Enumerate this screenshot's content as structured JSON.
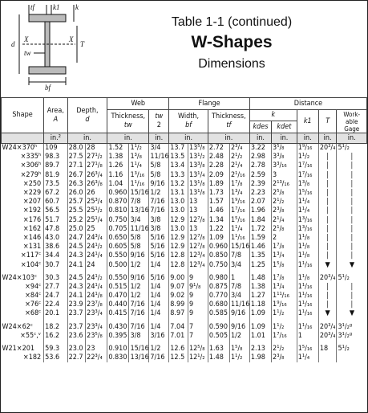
{
  "header": {
    "title_line1": "Table 1-1 (continued)",
    "title_line2": "W-Shapes",
    "title_line3": "Dimensions"
  },
  "diagram": {
    "labels": {
      "tf": "tf",
      "k1": "k1",
      "k": "k",
      "d": "d",
      "x_left": "X",
      "x_right": "X",
      "tw": "tw",
      "T": "T",
      "bf": "bf"
    }
  },
  "table": {
    "headers": {
      "shape": "Shape",
      "area": "Area,",
      "area_sym": "A",
      "depth": "Depth,",
      "depth_sym": "d",
      "web": "Web",
      "web_thickness": "Thickness,",
      "web_tw": "tw",
      "web_tw2_num": "tw",
      "web_tw2_den": "2",
      "flange": "Flange",
      "flange_width": "Width,",
      "flange_bf": "bf",
      "flange_thickness": "Thickness,",
      "flange_tf": "tf",
      "distance": "Distance",
      "k": "k",
      "k_des": "kdes",
      "k_det": "kdet",
      "k1": "k1",
      "T": "T",
      "gage": "Work-able Gage"
    },
    "units": [
      "in.²",
      "in.",
      "",
      "in.",
      "in.",
      "",
      "in.",
      "",
      "in.",
      "",
      "in.",
      "in.",
      "in.",
      "in.",
      "in."
    ],
    "groups": [
      {
        "rows": [
          [
            "W24×370ʰ",
            "109",
            "28.0",
            "28",
            "1.52",
            "1¹/₂",
            "3/4",
            "13.7",
            "13⁵/₈",
            "2.72",
            "2³/₄",
            "3.22",
            "3⁵/₈",
            "1⁹/₁₆",
            "20³/₄",
            "5¹/₂"
          ],
          [
            "×335ʰ",
            "98.3",
            "27.5",
            "27¹/₂",
            "1.38",
            "1³/₈",
            "11/16",
            "13.5",
            "13¹/₂",
            "2.48",
            "2¹/₂",
            "2.98",
            "3³/₈",
            "1¹/₂",
            "",
            ""
          ],
          [
            "×306ʰ",
            "89.7",
            "27.1",
            "27¹/₈",
            "1.26",
            "1¹/₄",
            "5/8",
            "13.4",
            "13³/₈",
            "2.28",
            "2¹/₄",
            "2.78",
            "3³/₁₆",
            "1⁷/₁₆",
            "",
            ""
          ],
          [
            "×279ʰ",
            "81.9",
            "26.7",
            "26³/₄",
            "1.16",
            "1³/₁₆",
            "5/8",
            "13.3",
            "13¹/₄",
            "2.09",
            "2¹/₁₆",
            "2.59",
            "3",
            "1⁷/₁₆",
            "",
            ""
          ],
          [
            "×250",
            "73.5",
            "26.3",
            "26³/₈",
            "1.04",
            "1¹/₁₆",
            "9/16",
            "13.2",
            "13¹/₈",
            "1.89",
            "1⁷/₈",
            "2.39",
            "2¹³/₁₆",
            "1³/₈",
            "",
            ""
          ],
          [
            "×229",
            "67.2",
            "26.0",
            "26",
            "0.960",
            "15/16",
            "1/2",
            "13.1",
            "13¹/₈",
            "1.73",
            "1³/₄",
            "2.23",
            "2⁵/₈",
            "1⁵/₁₆",
            "",
            ""
          ],
          [
            "×207",
            "60.7",
            "25.7",
            "25³/₄",
            "0.870",
            "7/8",
            "7/16",
            "13.0",
            "13",
            "1.57",
            "1⁹/₁₆",
            "2.07",
            "2¹/₂",
            "1¹/₄",
            "",
            ""
          ],
          [
            "×192",
            "56.5",
            "25.5",
            "25¹/₂",
            "0.810",
            "13/16",
            "7/16",
            "13.0",
            "13",
            "1.46",
            "1⁷/₁₆",
            "1.96",
            "2³/₈",
            "1¹/₄",
            "",
            ""
          ],
          [
            "×176",
            "51.7",
            "25.2",
            "25¹/₄",
            "0.750",
            "3/4",
            "3/8",
            "12.9",
            "12⁷/₈",
            "1.34",
            "1⁵/₁₆",
            "1.84",
            "2¹/₄",
            "1³/₁₆",
            "",
            ""
          ],
          [
            "×162",
            "47.8",
            "25.0",
            "25",
            "0.705",
            "11/16",
            "3/8",
            "13.0",
            "13",
            "1.22",
            "1¹/₄",
            "1.72",
            "2¹/₈",
            "1³/₁₆",
            "",
            ""
          ],
          [
            "×146",
            "43.0",
            "24.7",
            "24³/₄",
            "0.650",
            "5/8",
            "5/16",
            "12.9",
            "12⁷/₈",
            "1.09",
            "1¹/₁₆",
            "1.59",
            "2",
            "1¹/₈",
            "",
            ""
          ],
          [
            "×131",
            "38.6",
            "24.5",
            "24¹/₂",
            "0.605",
            "5/8",
            "5/16",
            "12.9",
            "12⁷/₈",
            "0.960",
            "15/16",
            "1.46",
            "1⁷/₈",
            "1¹/₈",
            "",
            ""
          ],
          [
            "×117ᶜ",
            "34.4",
            "24.3",
            "24¹/₄",
            "0.550",
            "9/16",
            "5/16",
            "12.8",
            "12³/₄",
            "0.850",
            "7/8",
            "1.35",
            "1³/₄",
            "1¹/₈",
            "",
            ""
          ],
          [
            "×104ᶜ",
            "30.7",
            "24.1",
            "24",
            "0.500",
            "1/2",
            "1/4",
            "12.8",
            "12³/₄",
            "0.750",
            "3/4",
            "1.25",
            "1⁵/₈",
            "1¹/₁₆",
            "",
            ""
          ]
        ]
      },
      {
        "rows": [
          [
            "W24×103ᶜ",
            "30.3",
            "24.5",
            "24¹/₂",
            "0.550",
            "9/16",
            "5/16",
            "9.00",
            "9",
            "0.980",
            "1",
            "1.48",
            "1⁷/₈",
            "1¹/₈",
            "20³/₄",
            "5¹/₂"
          ],
          [
            "×94ᶜ",
            "27.7",
            "24.3",
            "24¹/₄",
            "0.515",
            "1/2",
            "1/4",
            "9.07",
            "9¹/₈",
            "0.875",
            "7/8",
            "1.38",
            "1³/₄",
            "1¹/₁₆",
            "",
            ""
          ],
          [
            "×84ᶜ",
            "24.7",
            "24.1",
            "24¹/₈",
            "0.470",
            "1/2",
            "1/4",
            "9.02",
            "9",
            "0.770",
            "3/4",
            "1.27",
            "1¹¹/₁₆",
            "1¹/₁₆",
            "",
            ""
          ],
          [
            "×76ᶜ",
            "22.4",
            "23.9",
            "23⁷/₈",
            "0.440",
            "7/16",
            "1/4",
            "8.99",
            "9",
            "0.680",
            "11/16",
            "1.18",
            "1⁹/₁₆",
            "1¹/₁₆",
            "",
            ""
          ],
          [
            "×68ᶜ",
            "20.1",
            "23.7",
            "23³/₄",
            "0.415",
            "7/16",
            "1/4",
            "8.97",
            "9",
            "0.585",
            "9/16",
            "1.09",
            "1¹/₂",
            "1¹/₁₆",
            "",
            ""
          ]
        ]
      },
      {
        "rows": [
          [
            "W24×62ᶜ",
            "18.2",
            "23.7",
            "23³/₄",
            "0.430",
            "7/16",
            "1/4",
            "7.04",
            "7",
            "0.590",
            "9/16",
            "1.09",
            "1¹/₂",
            "1¹/₁₆",
            "20³/₄",
            "3¹/₂ᵍ"
          ],
          [
            "×55ᶜ,ᵛ",
            "16.2",
            "23.6",
            "23⁵/₈",
            "0.395",
            "3/8",
            "3/16",
            "7.01",
            "7",
            "0.505",
            "1/2",
            "1.01",
            "1⁷/₁₆",
            "1",
            "20³/₄",
            "3¹/₂ᵍ"
          ]
        ]
      },
      {
        "rows": [
          [
            "W21×201",
            "59.3",
            "23.0",
            "23",
            "0.910",
            "15/16",
            "1/2",
            "12.6",
            "12⁵/₈",
            "1.63",
            "1⁵/₈",
            "2.13",
            "2¹/₂",
            "1⁵/₁₆",
            "18",
            "5¹/₂"
          ],
          [
            "×182",
            "53.6",
            "22.7",
            "22³/₄",
            "0.830",
            "13/16",
            "7/16",
            "12.5",
            "12¹/₂",
            "1.48",
            "1¹/₂",
            "1.98",
            "2³/₈",
            "1¹/₄",
            "",
            ""
          ]
        ]
      }
    ]
  }
}
